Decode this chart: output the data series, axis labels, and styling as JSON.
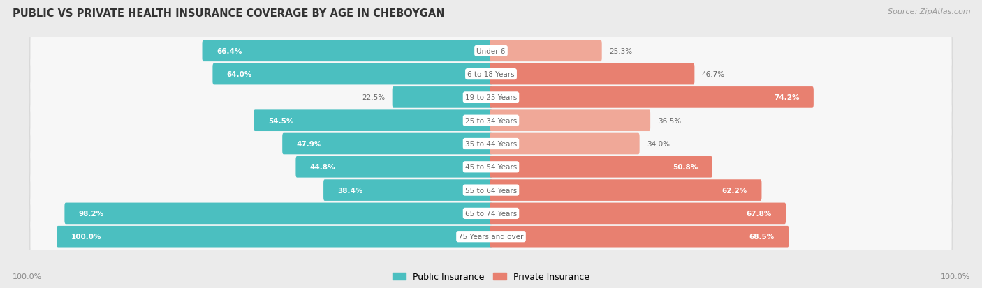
{
  "title": "PUBLIC VS PRIVATE HEALTH INSURANCE COVERAGE BY AGE IN CHEBOYGAN",
  "source": "Source: ZipAtlas.com",
  "categories": [
    "Under 6",
    "6 to 18 Years",
    "19 to 25 Years",
    "25 to 34 Years",
    "35 to 44 Years",
    "45 to 54 Years",
    "55 to 64 Years",
    "65 to 74 Years",
    "75 Years and over"
  ],
  "public_values": [
    66.4,
    64.0,
    22.5,
    54.5,
    47.9,
    44.8,
    38.4,
    98.2,
    100.0
  ],
  "private_values": [
    25.3,
    46.7,
    74.2,
    36.5,
    34.0,
    50.8,
    62.2,
    67.8,
    68.5
  ],
  "public_color": "#4BBFC0",
  "private_color": "#E88070",
  "private_color_light": "#F0A898",
  "bg_color": "#EBEBEB",
  "row_bg_color": "#F7F7F7",
  "row_border_color": "#D8D8D8",
  "label_white": "#FFFFFF",
  "label_dark": "#666666",
  "center_label_color": "#666666",
  "max_value": 100.0,
  "legend_public": "Public Insurance",
  "legend_private": "Private Insurance",
  "axis_label": "100.0%"
}
